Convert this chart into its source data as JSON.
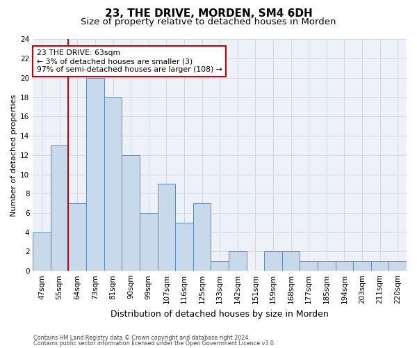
{
  "title": "23, THE DRIVE, MORDEN, SM4 6DH",
  "subtitle": "Size of property relative to detached houses in Morden",
  "xlabel": "Distribution of detached houses by size in Morden",
  "ylabel": "Number of detached properties",
  "categories": [
    "47sqm",
    "55sqm",
    "64sqm",
    "73sqm",
    "81sqm",
    "90sqm",
    "99sqm",
    "107sqm",
    "116sqm",
    "125sqm",
    "133sqm",
    "142sqm",
    "151sqm",
    "159sqm",
    "168sqm",
    "177sqm",
    "185sqm",
    "194sqm",
    "203sqm",
    "211sqm",
    "220sqm"
  ],
  "values": [
    4,
    13,
    7,
    20,
    18,
    12,
    6,
    9,
    5,
    7,
    1,
    2,
    0,
    2,
    2,
    1,
    1,
    1,
    1,
    1,
    1
  ],
  "bar_color": "#c9d9ec",
  "bar_edge_color": "#5a8ab8",
  "property_line_index": 2,
  "property_line_color": "#cc0000",
  "annotation_line1": "23 THE DRIVE: 63sqm",
  "annotation_line2": "← 3% of detached houses are smaller (3)",
  "annotation_line3": "97% of semi-detached houses are larger (108) →",
  "annotation_box_color": "#ffffff",
  "annotation_box_edge_color": "#cc0000",
  "ylim": [
    0,
    24
  ],
  "yticks": [
    0,
    2,
    4,
    6,
    8,
    10,
    12,
    14,
    16,
    18,
    20,
    22,
    24
  ],
  "grid_color": "#d0d8e8",
  "footer_line1": "Contains HM Land Registry data © Crown copyright and database right 2024.",
  "footer_line2": "Contains public sector information licensed under the Open Government Licence v3.0.",
  "background_color": "#eef2f8",
  "title_fontsize": 11,
  "subtitle_fontsize": 9.5,
  "tick_fontsize": 7.5,
  "ylabel_fontsize": 8,
  "xlabel_fontsize": 9,
  "annotation_fontsize": 7.8,
  "footer_fontsize": 5.8
}
